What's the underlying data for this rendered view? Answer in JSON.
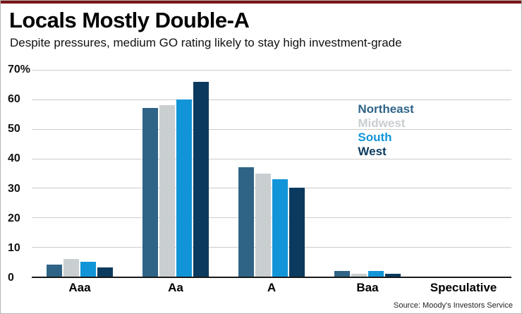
{
  "header": {
    "title": "Locals Mostly Double-A",
    "subtitle": "Despite pressures, medium GO rating likely to stay high investment-grade"
  },
  "source": "Source: Moody's Investors Service",
  "colors": {
    "top_accent": "#7a1416",
    "frame_border": "#b4b4b4",
    "axis": "#1a1a1a",
    "gridline": "#cccccc"
  },
  "chart_data": {
    "type": "bar",
    "title": "Locals Mostly Double-A",
    "subtitle": "Despite pressures, medium GO rating likely to stay high investment-grade",
    "categories": [
      "Aaa",
      "Aa",
      "A",
      "Baa",
      "Speculative"
    ],
    "series": [
      {
        "name": "Northeast",
        "color": "#2f6487",
        "values": [
          4,
          57,
          37,
          2,
          0
        ]
      },
      {
        "name": "Midwest",
        "color": "#c9cfd1",
        "values": [
          6,
          58,
          35,
          1,
          0
        ]
      },
      {
        "name": "South",
        "color": "#1295d8",
        "values": [
          5,
          60,
          33,
          2,
          0
        ]
      },
      {
        "name": "West",
        "color": "#0c3a5e",
        "values": [
          3,
          66,
          30,
          1,
          0
        ]
      }
    ],
    "xlabel": "",
    "ylabel": "",
    "ylim": [
      0,
      70
    ],
    "ytick_labels": [
      "70%",
      "60",
      "50",
      "40",
      "30",
      "20",
      "10",
      "0"
    ],
    "grid": true,
    "legend_position": "inside-right"
  }
}
